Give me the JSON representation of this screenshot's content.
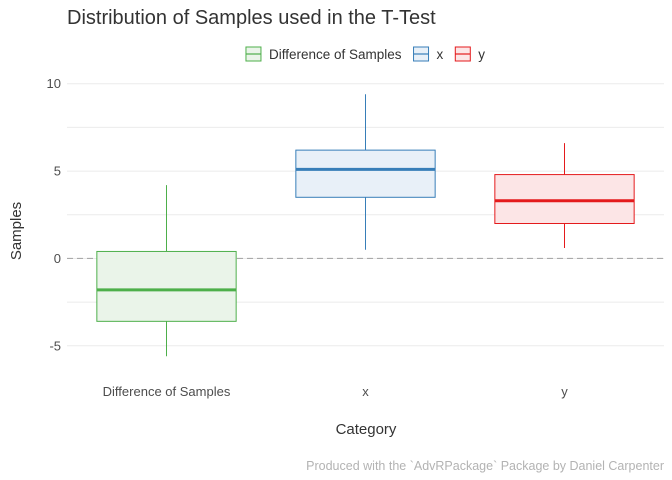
{
  "chart_data": {
    "type": "boxplot",
    "title": "Distribution of Samples used in the T-Test",
    "xlabel": "Category",
    "ylabel": "Samples",
    "caption": "Produced with the `AdvRPackage` Package by Daniel Carpenter",
    "categories": [
      "Difference of Samples",
      "x",
      "y"
    ],
    "ylim": [
      -6.5,
      10.5
    ],
    "y_ticks": [
      -5,
      0,
      5,
      10
    ],
    "reference_line": {
      "y": 0,
      "style": "dashed"
    },
    "legend": {
      "position": "top",
      "entries": [
        "Difference of Samples",
        "x",
        "y"
      ]
    },
    "grid": true,
    "series": [
      {
        "name": "Difference of Samples",
        "color": "#4daf4a",
        "fill": "#eaf4e9",
        "min": -5.6,
        "q1": -3.6,
        "median": -1.8,
        "q3": 0.4,
        "max": 4.2
      },
      {
        "name": "x",
        "color": "#377eb8",
        "fill": "#e8f0f8",
        "min": 0.5,
        "q1": 3.5,
        "median": 5.1,
        "q3": 6.2,
        "max": 9.4
      },
      {
        "name": "y",
        "color": "#e41a1c",
        "fill": "#fce5e6",
        "min": 0.6,
        "q1": 2.0,
        "median": 3.3,
        "q3": 4.8,
        "max": 6.6
      }
    ]
  }
}
